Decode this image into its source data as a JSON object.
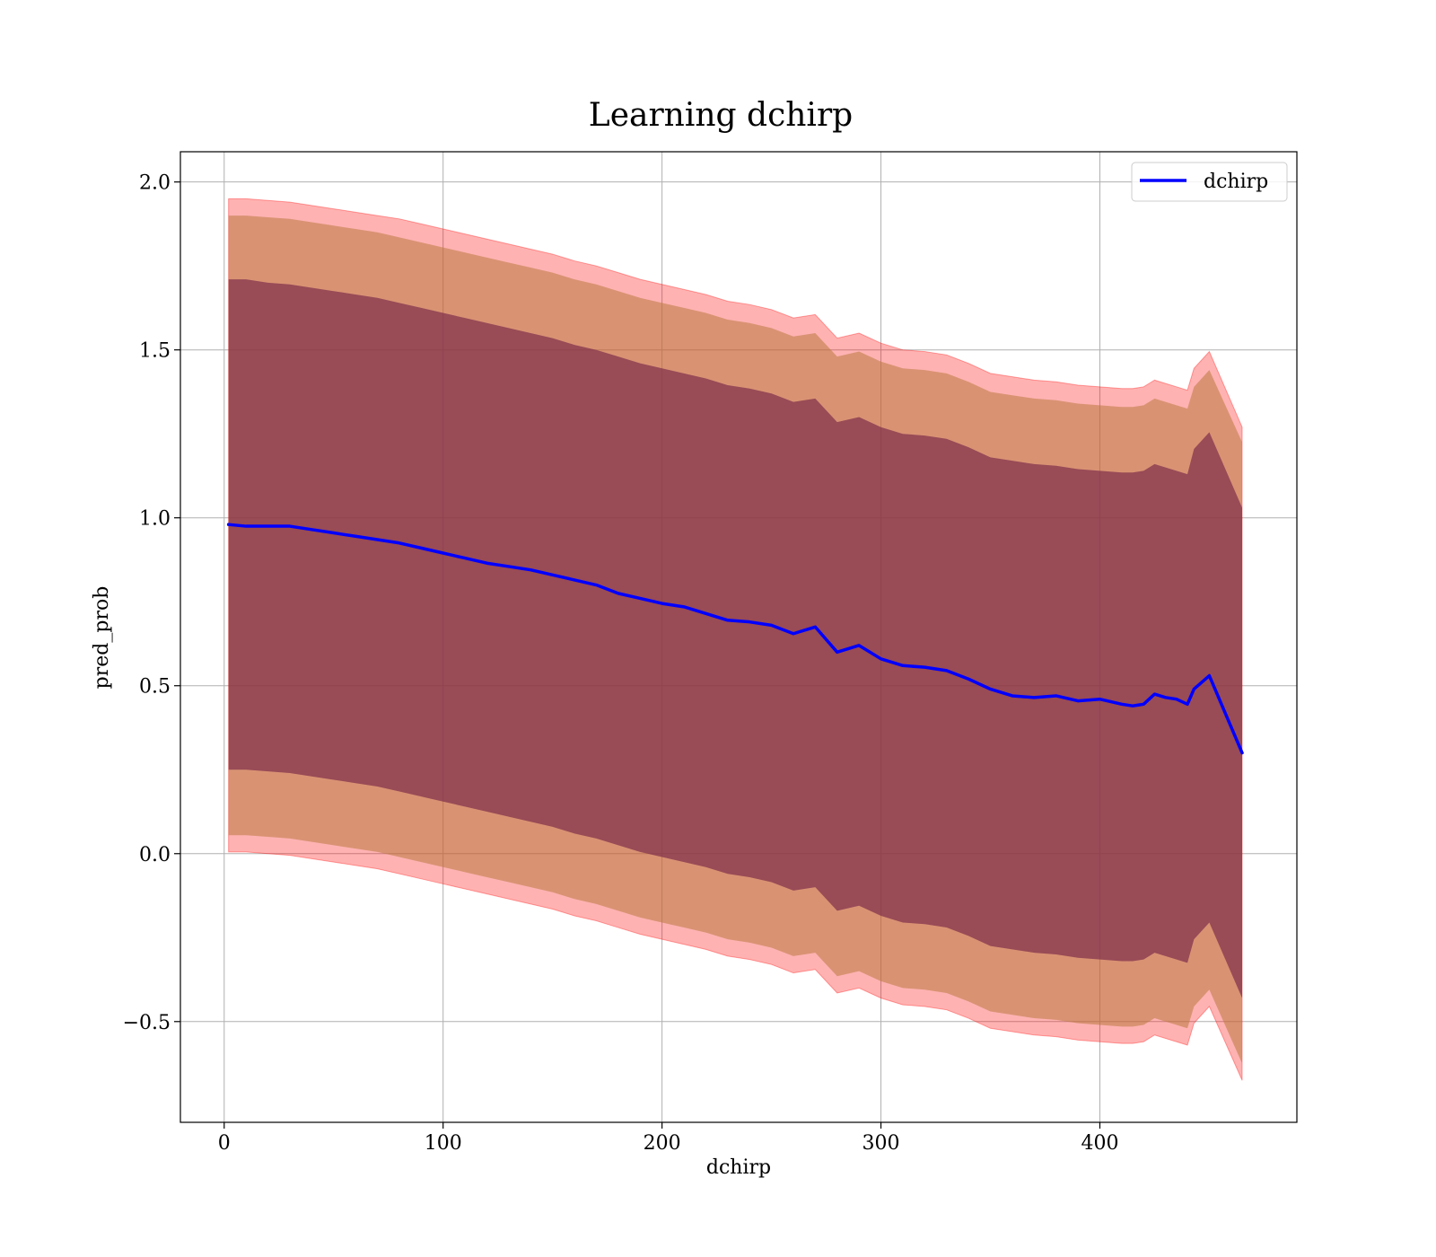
{
  "chart_data": {
    "type": "line",
    "title": "Learning dchirp",
    "xlabel": "dchirp",
    "ylabel": "pred_prob",
    "xlim": [
      -20,
      490
    ],
    "ylim": [
      -0.8,
      2.09
    ],
    "x_ticks": [
      0,
      100,
      200,
      300,
      400
    ],
    "y_ticks": [
      2.0,
      1.5,
      1.0,
      0.5,
      0.0,
      -0.5
    ],
    "y_tick_labels": [
      "2.0",
      "1.5",
      "1.0",
      "0.5",
      "0.0",
      "−0.5"
    ],
    "grid": true,
    "legend": {
      "placement": "top-right",
      "entries": [
        "dchirp"
      ]
    },
    "colors": {
      "line": "#0000ff",
      "band_outer": "#ff0000",
      "band_middle": "#b97a3f",
      "band_inner": "#7a2a48"
    },
    "series": [
      {
        "name": "dchirp",
        "x": [
          2,
          10,
          20,
          30,
          40,
          50,
          60,
          70,
          80,
          90,
          100,
          110,
          120,
          130,
          140,
          150,
          160,
          170,
          180,
          190,
          200,
          210,
          220,
          230,
          240,
          250,
          260,
          270,
          280,
          290,
          300,
          310,
          320,
          330,
          340,
          350,
          360,
          370,
          380,
          390,
          400,
          410,
          415,
          420,
          425,
          430,
          435,
          440,
          443,
          450,
          465
        ],
        "values": [
          0.98,
          0.975,
          0.975,
          0.975,
          0.965,
          0.955,
          0.945,
          0.935,
          0.925,
          0.91,
          0.895,
          0.88,
          0.865,
          0.855,
          0.845,
          0.83,
          0.815,
          0.8,
          0.775,
          0.76,
          0.745,
          0.735,
          0.715,
          0.695,
          0.69,
          0.68,
          0.655,
          0.675,
          0.6,
          0.62,
          0.58,
          0.56,
          0.555,
          0.545,
          0.52,
          0.49,
          0.47,
          0.465,
          0.47,
          0.455,
          0.46,
          0.445,
          0.44,
          0.445,
          0.475,
          0.465,
          0.46,
          0.445,
          0.49,
          0.53,
          0.3
        ],
        "upper_outer": [
          1.95,
          1.95,
          1.945,
          1.94,
          1.93,
          1.92,
          1.91,
          1.9,
          1.89,
          1.875,
          1.86,
          1.845,
          1.83,
          1.815,
          1.8,
          1.785,
          1.765,
          1.75,
          1.73,
          1.71,
          1.695,
          1.68,
          1.665,
          1.645,
          1.635,
          1.62,
          1.595,
          1.605,
          1.535,
          1.55,
          1.52,
          1.5,
          1.495,
          1.485,
          1.46,
          1.43,
          1.42,
          1.41,
          1.405,
          1.395,
          1.39,
          1.385,
          1.385,
          1.39,
          1.41,
          1.4,
          1.39,
          1.38,
          1.445,
          1.495,
          1.27
        ],
        "upper_middle": [
          1.9,
          1.9,
          1.895,
          1.89,
          1.88,
          1.87,
          1.86,
          1.85,
          1.835,
          1.82,
          1.805,
          1.79,
          1.775,
          1.76,
          1.745,
          1.73,
          1.71,
          1.695,
          1.675,
          1.655,
          1.64,
          1.625,
          1.61,
          1.59,
          1.58,
          1.565,
          1.54,
          1.55,
          1.48,
          1.495,
          1.465,
          1.445,
          1.44,
          1.43,
          1.405,
          1.375,
          1.365,
          1.355,
          1.35,
          1.34,
          1.335,
          1.33,
          1.33,
          1.335,
          1.355,
          1.345,
          1.335,
          1.325,
          1.39,
          1.44,
          1.225
        ],
        "upper_inner": [
          1.71,
          1.71,
          1.7,
          1.695,
          1.685,
          1.675,
          1.665,
          1.655,
          1.64,
          1.625,
          1.61,
          1.595,
          1.58,
          1.565,
          1.55,
          1.535,
          1.515,
          1.5,
          1.48,
          1.46,
          1.445,
          1.43,
          1.415,
          1.395,
          1.385,
          1.37,
          1.345,
          1.355,
          1.285,
          1.3,
          1.27,
          1.25,
          1.245,
          1.235,
          1.21,
          1.18,
          1.17,
          1.16,
          1.155,
          1.145,
          1.14,
          1.135,
          1.135,
          1.14,
          1.16,
          1.15,
          1.14,
          1.13,
          1.205,
          1.255,
          1.03
        ],
        "lower_inner": [
          0.25,
          0.25,
          0.245,
          0.24,
          0.23,
          0.22,
          0.21,
          0.2,
          0.185,
          0.17,
          0.155,
          0.14,
          0.125,
          0.11,
          0.095,
          0.08,
          0.06,
          0.045,
          0.025,
          0.005,
          -0.01,
          -0.025,
          -0.04,
          -0.06,
          -0.07,
          -0.085,
          -0.11,
          -0.1,
          -0.17,
          -0.155,
          -0.185,
          -0.205,
          -0.21,
          -0.22,
          -0.245,
          -0.275,
          -0.285,
          -0.295,
          -0.3,
          -0.31,
          -0.315,
          -0.32,
          -0.32,
          -0.315,
          -0.295,
          -0.305,
          -0.315,
          -0.325,
          -0.255,
          -0.205,
          -0.43
        ],
        "lower_middle": [
          0.055,
          0.055,
          0.05,
          0.045,
          0.035,
          0.025,
          0.015,
          0.005,
          -0.01,
          -0.025,
          -0.04,
          -0.055,
          -0.07,
          -0.085,
          -0.1,
          -0.115,
          -0.135,
          -0.15,
          -0.17,
          -0.19,
          -0.205,
          -0.22,
          -0.235,
          -0.255,
          -0.265,
          -0.28,
          -0.305,
          -0.295,
          -0.365,
          -0.35,
          -0.38,
          -0.4,
          -0.405,
          -0.415,
          -0.44,
          -0.47,
          -0.48,
          -0.49,
          -0.495,
          -0.505,
          -0.51,
          -0.515,
          -0.515,
          -0.51,
          -0.49,
          -0.5,
          -0.51,
          -0.52,
          -0.455,
          -0.405,
          -0.625
        ],
        "lower_outer": [
          0.005,
          0.005,
          0.0,
          -0.005,
          -0.015,
          -0.025,
          -0.035,
          -0.045,
          -0.06,
          -0.075,
          -0.09,
          -0.105,
          -0.12,
          -0.135,
          -0.15,
          -0.165,
          -0.185,
          -0.2,
          -0.22,
          -0.24,
          -0.255,
          -0.27,
          -0.285,
          -0.305,
          -0.315,
          -0.33,
          -0.355,
          -0.345,
          -0.415,
          -0.4,
          -0.43,
          -0.45,
          -0.455,
          -0.465,
          -0.49,
          -0.52,
          -0.53,
          -0.54,
          -0.545,
          -0.555,
          -0.56,
          -0.565,
          -0.565,
          -0.56,
          -0.54,
          -0.55,
          -0.56,
          -0.57,
          -0.505,
          -0.455,
          -0.675
        ]
      }
    ]
  }
}
